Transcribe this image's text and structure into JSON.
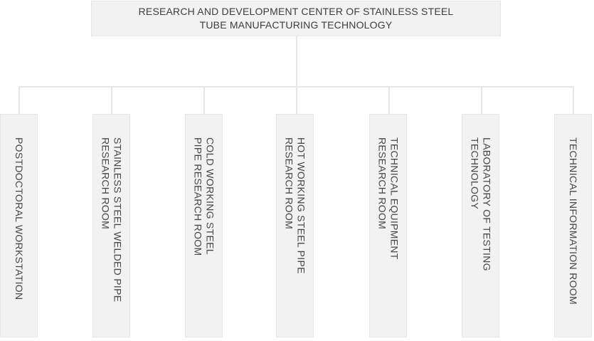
{
  "colors": {
    "box_fill": "#f2f2f2",
    "box_border": "#e7e7e7",
    "connector_line": "#e7e7e7",
    "root_text": "#3d3d3d",
    "dept_text": "#474747"
  },
  "root": {
    "title": "RESEARCH AND DEVELOPMENT CENTER OF STAINLESS STEEL\nTUBE MANUFACTURING TECHNOLOGY"
  },
  "departments": [
    {
      "label": "POSTDOCTORAL WORKSTATION"
    },
    {
      "label": "STAINLESS STEEL WELDED PIPE\nRESEARCH ROOM"
    },
    {
      "label": "COLD WORKING STEEL\nPIPE RESEARCH ROOM"
    },
    {
      "label": "HOT WORKING STEEL PIPE\nRESEARCH ROOM"
    },
    {
      "label": "TECHNICAL EQUIPMENT\nRESEARCH ROOM"
    },
    {
      "label": "LABORATORY OF TESTING\nTECHNOLOGY"
    },
    {
      "label": "TECHNICAL INFORMATION ROOM"
    }
  ]
}
